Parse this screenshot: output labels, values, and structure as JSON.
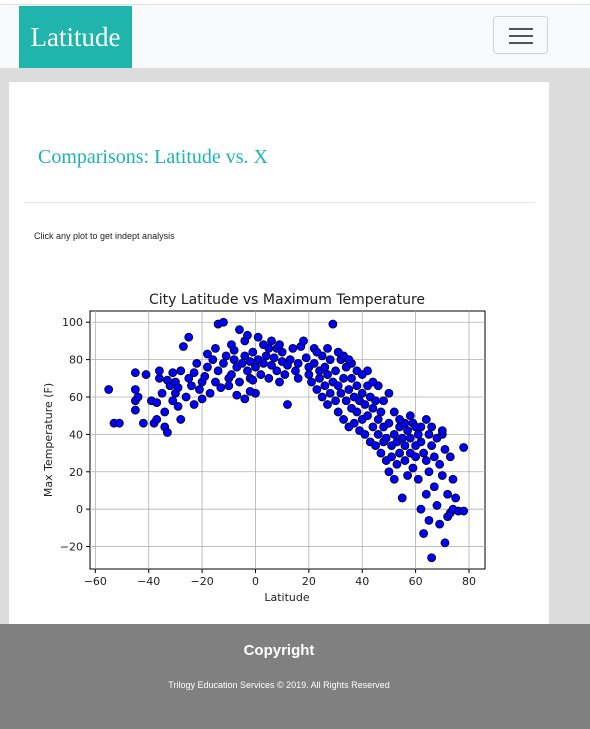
{
  "navbar": {
    "brand": "Latitude",
    "menu_icon": "hamburger-menu-icon"
  },
  "content": {
    "heading": "Comparisons: Latitude vs. X",
    "hint": "Click any plot to get indept analysis"
  },
  "chart_data": {
    "type": "scatter",
    "title": "City Latitude vs Maximum Temperature",
    "xlabel": "Latitude",
    "ylabel": "Max Temperature (F)",
    "xlim": [
      -62,
      86
    ],
    "ylim": [
      -32,
      106
    ],
    "xticks": [
      -60,
      -40,
      -20,
      0,
      20,
      40,
      60,
      80
    ],
    "yticks": [
      -20,
      0,
      20,
      40,
      60,
      80,
      100
    ],
    "xtick_labels": [
      "−60",
      "−40",
      "−20",
      "0",
      "20",
      "40",
      "60",
      "80"
    ],
    "ytick_labels": [
      "−20",
      "0",
      "20",
      "40",
      "60",
      "80",
      "100"
    ],
    "grid": true,
    "marker_color": "#0000ff",
    "marker_edge": "#000000",
    "points": [
      [
        -55,
        64
      ],
      [
        -53,
        46
      ],
      [
        -51,
        46
      ],
      [
        -45,
        73
      ],
      [
        -45,
        64
      ],
      [
        -45,
        58
      ],
      [
        -45,
        53
      ],
      [
        -44,
        60
      ],
      [
        -42,
        46
      ],
      [
        -41,
        72
      ],
      [
        -39,
        58
      ],
      [
        -38,
        46
      ],
      [
        -37,
        48
      ],
      [
        -37,
        57
      ],
      [
        -36,
        70
      ],
      [
        -36,
        74
      ],
      [
        -35,
        62
      ],
      [
        -34,
        44
      ],
      [
        -34,
        52
      ],
      [
        -33,
        41
      ],
      [
        -32,
        66
      ],
      [
        -31,
        58
      ],
      [
        -30,
        62
      ],
      [
        -30,
        68
      ],
      [
        -29,
        55
      ],
      [
        -28,
        48
      ],
      [
        -28,
        74
      ],
      [
        -27,
        87
      ],
      [
        -26,
        60
      ],
      [
        -25,
        70
      ],
      [
        -24,
        66
      ],
      [
        -23,
        56
      ],
      [
        -23,
        73
      ],
      [
        -22,
        78
      ],
      [
        -21,
        64
      ],
      [
        -20,
        59
      ],
      [
        -20,
        68
      ],
      [
        -19,
        71
      ],
      [
        -18,
        76
      ],
      [
        -17,
        62
      ],
      [
        -16,
        80
      ],
      [
        -15,
        68
      ],
      [
        -15,
        86
      ],
      [
        -14,
        74
      ],
      [
        -13,
        65
      ],
      [
        -12,
        78
      ],
      [
        -11,
        82
      ],
      [
        -10,
        70
      ],
      [
        -10,
        66
      ],
      [
        -9,
        72
      ],
      [
        -8,
        80
      ],
      [
        -8,
        85
      ],
      [
        -7,
        76
      ],
      [
        -6,
        68
      ],
      [
        -5,
        78
      ],
      [
        -4,
        82
      ],
      [
        -3,
        74
      ],
      [
        -2,
        70
      ],
      [
        -2,
        79
      ],
      [
        -1,
        84
      ],
      [
        0,
        62
      ],
      [
        0,
        76
      ],
      [
        1,
        80
      ],
      [
        2,
        72
      ],
      [
        3,
        78
      ],
      [
        4,
        82
      ],
      [
        5,
        70
      ],
      [
        6,
        77
      ],
      [
        7,
        81
      ],
      [
        8,
        74
      ],
      [
        9,
        68
      ],
      [
        10,
        79
      ],
      [
        10,
        84
      ],
      [
        11,
        72
      ],
      [
        12,
        77
      ],
      [
        13,
        80
      ],
      [
        14,
        86
      ],
      [
        15,
        74
      ],
      [
        16,
        78
      ],
      [
        16,
        70
      ],
      [
        -25,
        92
      ],
      [
        -14,
        99
      ],
      [
        -12,
        100
      ],
      [
        -6,
        96
      ],
      [
        -4,
        90
      ],
      [
        -31,
        73
      ],
      [
        -33,
        69
      ],
      [
        -29,
        65
      ],
      [
        -18,
        83
      ],
      [
        -9,
        88
      ],
      [
        -7,
        61
      ],
      [
        -4,
        59
      ],
      [
        -2,
        63
      ],
      [
        -1,
        69
      ],
      [
        5,
        86
      ],
      [
        8,
        86
      ],
      [
        12,
        56
      ],
      [
        17,
        87
      ],
      [
        18,
        90
      ],
      [
        19,
        81
      ],
      [
        20,
        76
      ],
      [
        20,
        72
      ],
      [
        21,
        68
      ],
      [
        22,
        86
      ],
      [
        22,
        78
      ],
      [
        23,
        64
      ],
      [
        24,
        74
      ],
      [
        24,
        70
      ],
      [
        25,
        82
      ],
      [
        25,
        60
      ],
      [
        26,
        66
      ],
      [
        26,
        76
      ],
      [
        27,
        56
      ],
      [
        27,
        72
      ],
      [
        28,
        80
      ],
      [
        28,
        62
      ],
      [
        29,
        99
      ],
      [
        29,
        68
      ],
      [
        30,
        58
      ],
      [
        30,
        74
      ],
      [
        31,
        66
      ],
      [
        31,
        52
      ],
      [
        32,
        80
      ],
      [
        32,
        62
      ],
      [
        33,
        70
      ],
      [
        33,
        48
      ],
      [
        34,
        58
      ],
      [
        34,
        76
      ],
      [
        35,
        64
      ],
      [
        35,
        44
      ],
      [
        36,
        54
      ],
      [
        36,
        70
      ],
      [
        37,
        60
      ],
      [
        37,
        46
      ],
      [
        38,
        66
      ],
      [
        38,
        52
      ],
      [
        39,
        58
      ],
      [
        39,
        42
      ],
      [
        40,
        62
      ],
      [
        40,
        48
      ],
      [
        41,
        56
      ],
      [
        41,
        40
      ],
      [
        42,
        66
      ],
      [
        42,
        50
      ],
      [
        43,
        60
      ],
      [
        43,
        36
      ],
      [
        44,
        54
      ],
      [
        44,
        44
      ],
      [
        45,
        58
      ],
      [
        45,
        34
      ],
      [
        46,
        48
      ],
      [
        46,
        40
      ],
      [
        47,
        52
      ],
      [
        47,
        30
      ],
      [
        48,
        44
      ],
      [
        48,
        36
      ],
      [
        49,
        38
      ],
      [
        49,
        26
      ],
      [
        50,
        46
      ],
      [
        50,
        20
      ],
      [
        51,
        34
      ],
      [
        51,
        28
      ],
      [
        52,
        40
      ],
      [
        52,
        16
      ],
      [
        53,
        36
      ],
      [
        53,
        24
      ],
      [
        54,
        30
      ],
      [
        54,
        44
      ],
      [
        55,
        38
      ],
      [
        55,
        6
      ],
      [
        56,
        26
      ],
      [
        56,
        34
      ],
      [
        57,
        42
      ],
      [
        57,
        18
      ],
      [
        58,
        30
      ],
      [
        58,
        38
      ],
      [
        59,
        22
      ],
      [
        59,
        46
      ],
      [
        60,
        34
      ],
      [
        60,
        28
      ],
      [
        61,
        40
      ],
      [
        61,
        16
      ],
      [
        62,
        36
      ],
      [
        62,
        44
      ],
      [
        62,
        0
      ],
      [
        63,
        30
      ],
      [
        63,
        -13
      ],
      [
        64,
        26
      ],
      [
        64,
        8
      ],
      [
        65,
        40
      ],
      [
        65,
        20
      ],
      [
        65,
        -6
      ],
      [
        66,
        34
      ],
      [
        66,
        -26
      ],
      [
        67,
        28
      ],
      [
        67,
        12
      ],
      [
        68,
        38
      ],
      [
        68,
        2
      ],
      [
        69,
        24
      ],
      [
        69,
        -8
      ],
      [
        70,
        18
      ],
      [
        70,
        40
      ],
      [
        71,
        32
      ],
      [
        71,
        -18
      ],
      [
        72,
        8
      ],
      [
        72,
        -4
      ],
      [
        73,
        28
      ],
      [
        73,
        -2
      ],
      [
        74,
        16
      ],
      [
        74,
        0
      ],
      [
        75,
        6
      ],
      [
        76,
        -1
      ],
      [
        78,
        -1
      ],
      [
        78,
        33
      ],
      [
        56,
        46
      ],
      [
        58,
        50
      ],
      [
        60,
        44
      ],
      [
        64,
        48
      ],
      [
        66,
        44
      ],
      [
        70,
        42
      ],
      [
        46,
        66
      ],
      [
        48,
        58
      ],
      [
        50,
        62
      ],
      [
        52,
        52
      ],
      [
        54,
        48
      ],
      [
        38,
        74
      ],
      [
        40,
        72
      ],
      [
        42,
        74
      ],
      [
        44,
        68
      ],
      [
        36,
        78
      ],
      [
        33,
        82
      ],
      [
        35,
        80
      ],
      [
        31,
        84
      ],
      [
        27,
        86
      ],
      [
        23,
        84
      ],
      [
        -3,
        93
      ],
      [
        1,
        92
      ],
      [
        3,
        88
      ],
      [
        6,
        90
      ],
      [
        9,
        88
      ]
    ]
  },
  "footer": {
    "title": "Copyright",
    "text": "Trilogy Education Services © 2019. All Rights Reserved"
  }
}
